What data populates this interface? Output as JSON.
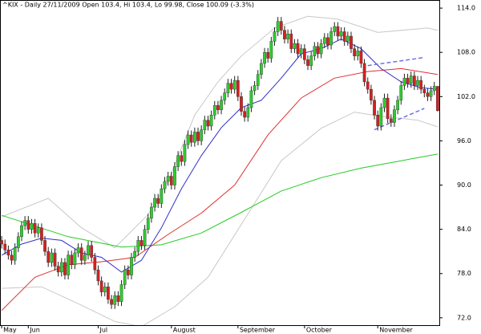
{
  "chart_data": {
    "type": "candlestick",
    "title": "^KIX - Daily 27/11/2009 Open 103.4, Hi 103.4, Lo 99.98, Close 100.09 (-3.3%)",
    "categories": [
      "May",
      null,
      null,
      null,
      null,
      null,
      null,
      null,
      "Jun",
      null,
      null,
      null,
      null,
      null,
      null,
      null,
      null,
      null,
      null,
      null,
      null,
      null,
      null,
      null,
      null,
      null,
      null,
      null,
      null,
      "Jul",
      null,
      null,
      null,
      null,
      null,
      null,
      null,
      null,
      null,
      null,
      null,
      null,
      null,
      null,
      null,
      null,
      null,
      null,
      null,
      null,
      null,
      "August",
      null,
      null,
      null,
      null,
      null,
      null,
      null,
      null,
      null,
      null,
      null,
      null,
      null,
      null,
      null,
      null,
      null,
      null,
      null,
      "September",
      null,
      null,
      null,
      null,
      null,
      null,
      null,
      null,
      null,
      null,
      null,
      null,
      null,
      null,
      null,
      null,
      null,
      null,
      null,
      "October",
      null,
      null,
      null,
      null,
      null,
      null,
      null,
      null,
      null,
      null,
      null,
      null,
      null,
      null,
      null,
      null,
      null,
      null,
      null,
      null,
      null,
      "November",
      null,
      null,
      null,
      null,
      null,
      null,
      null,
      null,
      null,
      null,
      null,
      null,
      null,
      null,
      null,
      null,
      null,
      null
    ],
    "open": [
      82.5,
      82.0,
      81.2,
      80.5,
      79.8,
      81.5,
      83.0,
      84.5,
      85.2,
      84.0,
      84.8,
      83.5,
      84.2,
      82.5,
      81.0,
      79.5,
      80.8,
      79.0,
      78.2,
      79.5,
      77.8,
      80.5,
      79.2,
      80.8,
      81.5,
      79.8,
      80.5,
      81.8,
      80.2,
      78.5,
      77.0,
      75.5,
      76.2,
      74.5,
      73.8,
      75.0,
      74.2,
      76.5,
      78.5,
      77.8,
      80.2,
      81.0,
      82.5,
      81.8,
      84.0,
      85.5,
      87.0,
      88.2,
      87.5,
      89.5,
      90.5,
      91.2,
      90.0,
      92.5,
      94.0,
      93.2,
      95.5,
      96.8,
      95.8,
      97.2,
      96.0,
      97.5,
      98.8,
      98.0,
      99.5,
      100.8,
      100.2,
      101.5,
      102.5,
      103.8,
      103.0,
      104.2,
      102.0,
      100.0,
      99.2,
      100.5,
      102.8,
      103.5,
      105.0,
      106.5,
      108.0,
      107.2,
      109.5,
      110.8,
      112.2,
      111.0,
      109.8,
      110.5,
      108.5,
      109.2,
      107.8,
      108.5,
      107.0,
      106.2,
      107.5,
      108.8,
      107.8,
      109.2,
      110.0,
      109.0,
      110.8,
      111.5,
      110.2,
      110.8,
      109.5,
      110.2,
      108.5,
      107.5,
      108.2,
      106.5,
      104.0,
      103.0,
      101.5,
      99.5,
      98.0,
      100.5,
      101.8,
      99.0,
      98.5,
      100.2,
      101.5,
      103.5,
      104.5,
      103.8,
      104.8,
      103.5,
      104.2,
      103.0,
      102.5,
      102.0,
      102.8,
      103.4
    ],
    "high": [
      83.1,
      82.6,
      81.8,
      81.1,
      82.1,
      83.6,
      85.1,
      85.8,
      85.8,
      85.4,
      85.4,
      84.8,
      84.8,
      83.1,
      81.6,
      81.4,
      81.4,
      79.6,
      80.1,
      80.1,
      81.1,
      81.1,
      81.4,
      82.1,
      82.1,
      81.1,
      82.4,
      82.4,
      80.8,
      79.1,
      77.6,
      76.8,
      76.8,
      75.1,
      75.6,
      75.6,
      77.1,
      79.1,
      79.1,
      80.8,
      81.6,
      83.1,
      83.1,
      84.6,
      86.1,
      87.6,
      88.8,
      88.8,
      90.1,
      91.1,
      91.8,
      91.8,
      93.1,
      94.6,
      94.6,
      96.1,
      97.4,
      97.4,
      97.8,
      97.8,
      98.1,
      99.4,
      99.4,
      100.1,
      101.4,
      101.4,
      102.1,
      103.1,
      104.4,
      104.4,
      104.8,
      104.8,
      102.6,
      100.6,
      101.1,
      103.4,
      104.1,
      105.6,
      107.1,
      108.6,
      108.6,
      110.1,
      111.4,
      112.8,
      112.8,
      111.6,
      111.1,
      111.1,
      109.8,
      109.8,
      109.1,
      109.1,
      107.6,
      108.1,
      109.4,
      109.4,
      109.8,
      110.6,
      110.6,
      111.4,
      112.1,
      112.1,
      111.4,
      111.4,
      110.8,
      110.8,
      109.1,
      108.8,
      108.8,
      107.1,
      104.6,
      103.6,
      102.1,
      100.1,
      101.1,
      102.4,
      102.4,
      99.6,
      100.8,
      102.1,
      104.1,
      105.1,
      105.1,
      105.4,
      105.4,
      104.8,
      104.8,
      103.6,
      103.1,
      103.4,
      104.0,
      103.4
    ],
    "low": [
      81.4,
      80.6,
      79.9,
      79.2,
      79.2,
      80.9,
      82.4,
      83.9,
      83.4,
      83.4,
      82.9,
      82.9,
      81.9,
      80.4,
      78.9,
      78.9,
      78.4,
      77.6,
      77.6,
      77.2,
      77.2,
      78.6,
      78.6,
      80.2,
      79.2,
      79.2,
      79.9,
      79.6,
      77.9,
      76.4,
      74.9,
      74.9,
      73.9,
      73.2,
      73.2,
      73.6,
      73.6,
      75.9,
      77.2,
      77.2,
      79.6,
      80.4,
      81.2,
      81.2,
      83.4,
      84.9,
      86.4,
      86.9,
      86.9,
      88.9,
      89.9,
      89.4,
      89.4,
      91.9,
      92.6,
      92.6,
      94.9,
      95.2,
      95.2,
      95.4,
      95.4,
      96.9,
      97.4,
      97.4,
      98.9,
      99.6,
      99.6,
      100.9,
      101.9,
      102.4,
      102.4,
      101.4,
      99.4,
      98.6,
      98.6,
      99.9,
      102.2,
      102.9,
      104.4,
      105.9,
      106.6,
      106.6,
      108.9,
      110.2,
      110.4,
      109.2,
      109.2,
      107.9,
      107.9,
      107.2,
      107.2,
      106.4,
      105.6,
      105.6,
      106.9,
      107.2,
      107.2,
      108.6,
      108.4,
      108.4,
      110.2,
      109.6,
      109.6,
      108.9,
      108.9,
      107.9,
      106.9,
      106.9,
      105.9,
      103.4,
      102.4,
      100.9,
      98.9,
      97.4,
      97.4,
      99.9,
      98.4,
      97.9,
      97.9,
      99.6,
      100.9,
      102.9,
      103.2,
      103.2,
      102.9,
      102.9,
      102.4,
      101.9,
      101.4,
      101.4,
      102.2,
      99.98
    ],
    "close": [
      82.0,
      81.2,
      80.5,
      79.8,
      81.5,
      83.0,
      84.5,
      85.2,
      84.0,
      84.8,
      83.5,
      84.2,
      82.5,
      81.0,
      79.5,
      80.8,
      79.0,
      78.2,
      79.5,
      77.8,
      80.5,
      79.2,
      80.8,
      81.5,
      79.8,
      80.5,
      81.8,
      80.2,
      78.5,
      77.0,
      75.5,
      76.2,
      74.5,
      73.8,
      75.0,
      74.2,
      76.5,
      78.5,
      77.8,
      80.2,
      81.0,
      82.5,
      81.8,
      84.0,
      85.5,
      87.0,
      88.2,
      87.5,
      89.5,
      90.5,
      91.2,
      90.0,
      92.5,
      94.0,
      93.2,
      95.5,
      96.8,
      95.8,
      97.2,
      96.0,
      97.5,
      98.8,
      98.0,
      99.5,
      100.8,
      100.2,
      101.5,
      102.5,
      103.8,
      103.0,
      104.2,
      102.0,
      100.0,
      99.2,
      100.5,
      102.8,
      103.5,
      105.0,
      106.5,
      108.0,
      107.2,
      109.5,
      110.8,
      112.2,
      111.0,
      109.8,
      110.5,
      108.5,
      109.2,
      107.8,
      108.5,
      107.0,
      106.2,
      107.5,
      108.8,
      107.8,
      109.2,
      110.0,
      109.0,
      110.8,
      111.5,
      110.2,
      110.8,
      109.5,
      110.2,
      108.5,
      107.5,
      108.2,
      106.5,
      104.0,
      103.0,
      101.5,
      99.5,
      98.0,
      100.5,
      101.8,
      99.0,
      98.5,
      100.2,
      101.5,
      103.5,
      104.5,
      103.8,
      104.8,
      103.5,
      104.2,
      103.0,
      102.5,
      102.0,
      102.8,
      103.4,
      100.09
    ],
    "up_color": "#2ecc2e",
    "down_color": "#d42020",
    "overlays": [
      {
        "color": "#c8c8c8",
        "x": [
          0,
          14,
          24,
          34,
          44,
          50,
          58,
          65,
          72,
          82,
          92,
          101,
          113,
          128,
          131
        ],
        "values": [
          85.7,
          88.2,
          84.2,
          81.5,
          86.0,
          90.5,
          99.5,
          104.0,
          107.5,
          111.3,
          112.9,
          112.5,
          110.7,
          111.3,
          111.0
        ]
      },
      {
        "color": "#c8c8c8",
        "x": [
          0,
          12,
          24,
          34,
          42,
          52,
          62,
          75,
          84,
          96,
          106,
          113,
          125,
          131
        ],
        "values": [
          76.0,
          76.2,
          73.7,
          71.5,
          70.8,
          73.5,
          77.5,
          86.8,
          93.3,
          97.7,
          99.9,
          99.4,
          98.8,
          97.9
        ]
      },
      {
        "color": "#22cc22",
        "x": [
          0,
          20,
          36,
          48,
          60,
          72,
          84,
          96,
          108,
          120,
          131
        ],
        "values": [
          85.9,
          83.0,
          81.6,
          81.9,
          83.5,
          86.3,
          89.2,
          91.0,
          92.3,
          93.3,
          94.2
        ]
      },
      {
        "color": "#e03030",
        "x": [
          0,
          10,
          20,
          30,
          40,
          50,
          60,
          70,
          80,
          90,
          100,
          110,
          120,
          131
        ],
        "values": [
          73.0,
          77.5,
          79.2,
          79.6,
          80.2,
          83.3,
          86.2,
          90.0,
          96.8,
          101.8,
          104.5,
          105.4,
          105.8,
          105.0
        ]
      },
      {
        "color": "#3030c8",
        "x": [
          0,
          6,
          12,
          18,
          24,
          30,
          36,
          42,
          48,
          54,
          60,
          66,
          72,
          78,
          84,
          90,
          96,
          102,
          108,
          114,
          120,
          126,
          131
        ],
        "values": [
          80.5,
          82.0,
          82.8,
          82.5,
          80.8,
          80.2,
          78.2,
          79.8,
          84.2,
          89.5,
          94.0,
          97.8,
          100.5,
          101.5,
          104.5,
          107.8,
          108.5,
          109.8,
          108.5,
          105.8,
          104.0,
          103.2,
          103.0
        ]
      }
    ],
    "trendlines": [
      {
        "color": "#7070e0",
        "x": [
          110,
          127
        ],
        "values": [
          106.2,
          107.3
        ]
      },
      {
        "color": "#7070e0",
        "x": [
          112,
          127
        ],
        "values": [
          97.5,
          100.4
        ]
      }
    ],
    "ylim": [
      71.0,
      115.1
    ],
    "yticks": [
      {
        "value": 114,
        "label": "114.0"
      },
      {
        "value": 108,
        "label": "108.0"
      },
      {
        "value": 102,
        "label": "102.0"
      },
      {
        "value": 96,
        "label": "96.0"
      },
      {
        "value": 90,
        "label": "90.0"
      },
      {
        "value": 84,
        "label": "84.0"
      },
      {
        "value": 78,
        "label": "78.0"
      },
      {
        "value": 72,
        "label": "72.0"
      }
    ]
  }
}
